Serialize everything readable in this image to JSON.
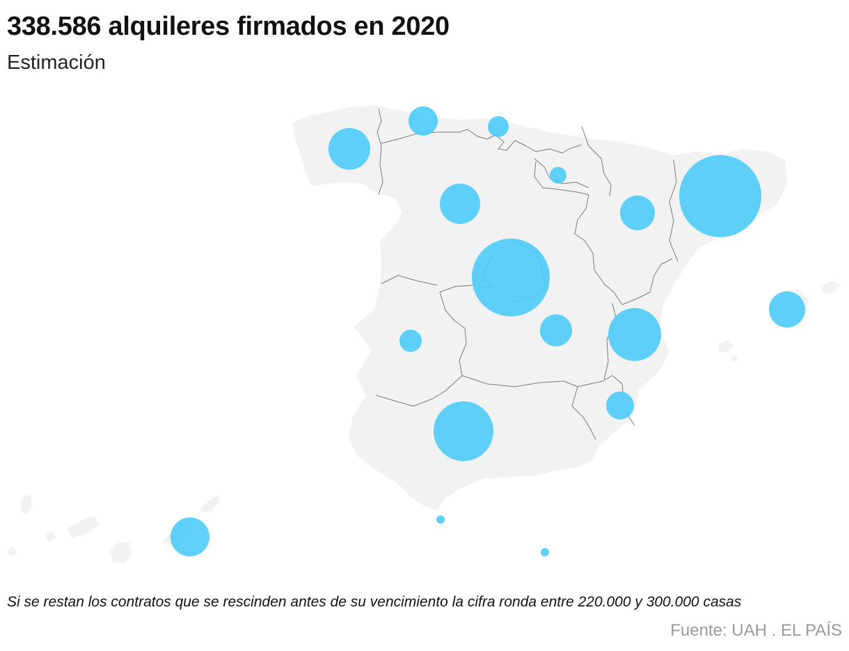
{
  "header": {
    "title": "338.586 alquileres firmados en 2020",
    "subtitle": "Estimación"
  },
  "footer": {
    "note": "Si se restan los contratos que se rescinden antes de su vencimiento la cifra ronda entre 220.000 y 300.000 casas",
    "source": "Fuente: UAH . EL PAÍS"
  },
  "colors": {
    "bubble": "#4ccbf9",
    "land": "#f2f2f2",
    "border": "#7a7a7a"
  }
}
